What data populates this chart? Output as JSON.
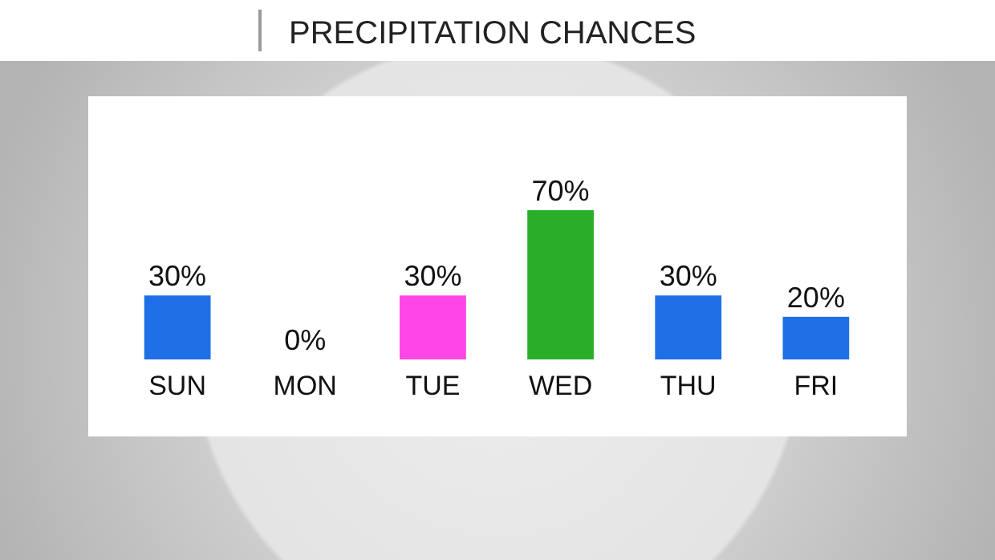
{
  "chart_data": {
    "type": "bar",
    "title": "PRECIPITATION CHANCES",
    "categories": [
      "SUN",
      "MON",
      "TUE",
      "WED",
      "THU",
      "FRI"
    ],
    "values": [
      30,
      0,
      30,
      70,
      30,
      20
    ],
    "colors": [
      "#1f6fe6",
      "#1f6fe6",
      "#ff45e6",
      "#2aae2a",
      "#1f6fe6",
      "#1f6fe6"
    ],
    "value_labels": [
      "30%",
      "0%",
      "30%",
      "70%",
      "30%",
      "20%"
    ]
  }
}
